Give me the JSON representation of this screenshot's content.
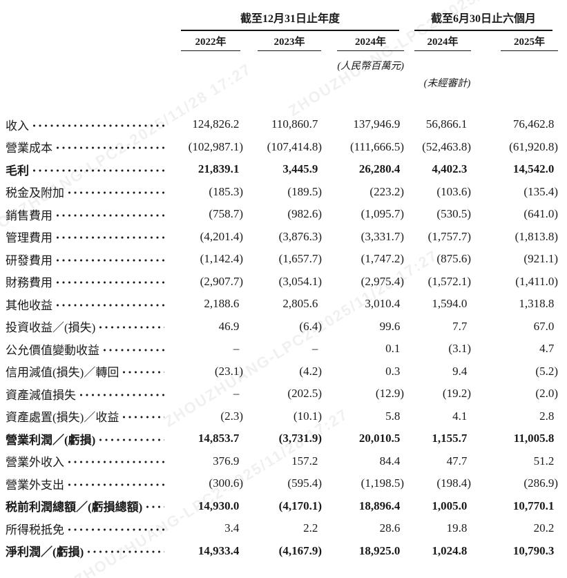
{
  "watermark": {
    "text": "ZHOUZHUANG-LPC2-2025/11/28 17:27"
  },
  "header": {
    "group1": "截至12月31日止年度",
    "group2": "截至6月30日止六個月",
    "years": [
      "2022年",
      "2023年",
      "2024年",
      "2024年",
      "2025年"
    ],
    "unit_note": "(人民幣百萬元)",
    "unaudited_note": "(未經審計)"
  },
  "table": {
    "rows": [
      {
        "label": "收入",
        "bold": false,
        "values": [
          "124,826.2",
          "110,860.7",
          "137,946.9",
          "56,866.1",
          "76,462.8"
        ]
      },
      {
        "label": "營業成本",
        "bold": false,
        "values": [
          "(102,987.1)",
          "(107,414.8)",
          "(111,666.5)",
          "(52,463.8)",
          "(61,920.8)"
        ]
      },
      {
        "label": "毛利",
        "bold": true,
        "values": [
          "21,839.1",
          "3,445.9",
          "26,280.4",
          "4,402.3",
          "14,542.0"
        ]
      },
      {
        "label": "税金及附加",
        "bold": false,
        "values": [
          "(185.3)",
          "(189.5)",
          "(223.2)",
          "(103.6)",
          "(135.4)"
        ]
      },
      {
        "label": "銷售費用",
        "bold": false,
        "values": [
          "(758.7)",
          "(982.6)",
          "(1,095.7)",
          "(530.5)",
          "(641.0)"
        ]
      },
      {
        "label": "管理費用",
        "bold": false,
        "values": [
          "(4,201.4)",
          "(3,876.3)",
          "(3,331.7)",
          "(1,757.7)",
          "(1,813.8)"
        ]
      },
      {
        "label": "研發費用",
        "bold": false,
        "values": [
          "(1,142.4)",
          "(1,657.7)",
          "(1,747.2)",
          "(875.6)",
          "(921.1)"
        ]
      },
      {
        "label": "財務費用",
        "bold": false,
        "values": [
          "(2,907.7)",
          "(3,054.1)",
          "(2,975.4)",
          "(1,572.1)",
          "(1,411.0)"
        ]
      },
      {
        "label": "其他收益",
        "bold": false,
        "values": [
          "2,188.6",
          "2,805.6",
          "3,010.4",
          "1,594.0",
          "1,318.8"
        ]
      },
      {
        "label": "投資收益／(損失)",
        "bold": false,
        "values": [
          "46.9",
          "(6.4)",
          "99.6",
          "7.7",
          "67.0"
        ]
      },
      {
        "label": "公允價值變動收益",
        "bold": false,
        "values": [
          "–",
          "–",
          "0.1",
          "(3.1)",
          "4.7"
        ]
      },
      {
        "label": "信用減值(損失)／轉回",
        "bold": false,
        "values": [
          "(23.1)",
          "(4.2)",
          "0.3",
          "9.4",
          "(5.2)"
        ]
      },
      {
        "label": "資產減值損失",
        "bold": false,
        "values": [
          "–",
          "(202.5)",
          "(12.9)",
          "(19.2)",
          "(2.0)"
        ]
      },
      {
        "label": "資產處置(損失)／收益",
        "bold": false,
        "values": [
          "(2.3)",
          "(10.1)",
          "5.8",
          "4.1",
          "2.8"
        ]
      },
      {
        "label": "營業利潤／(虧損)",
        "bold": true,
        "values": [
          "14,853.7",
          "(3,731.9)",
          "20,010.5",
          "1,155.7",
          "11,005.8"
        ]
      },
      {
        "label": "營業外收入",
        "bold": false,
        "values": [
          "376.9",
          "157.2",
          "84.4",
          "47.7",
          "51.2"
        ]
      },
      {
        "label": "營業外支出",
        "bold": false,
        "values": [
          "(300.6)",
          "(595.4)",
          "(1,198.5)",
          "(198.4)",
          "(286.9)"
        ]
      },
      {
        "label": "税前利潤總額／(虧損總額)",
        "bold": true,
        "values": [
          "14,930.0",
          "(4,170.1)",
          "18,896.4",
          "1,005.0",
          "10,770.1"
        ]
      },
      {
        "label": "所得税抵免",
        "bold": false,
        "values": [
          "3.4",
          "2.2",
          "28.6",
          "19.8",
          "20.2"
        ]
      },
      {
        "label": "淨利潤／(虧損)",
        "bold": true,
        "values": [
          "14,933.4",
          "(4,167.9)",
          "18,925.0",
          "1,024.8",
          "10,790.3"
        ]
      }
    ]
  }
}
